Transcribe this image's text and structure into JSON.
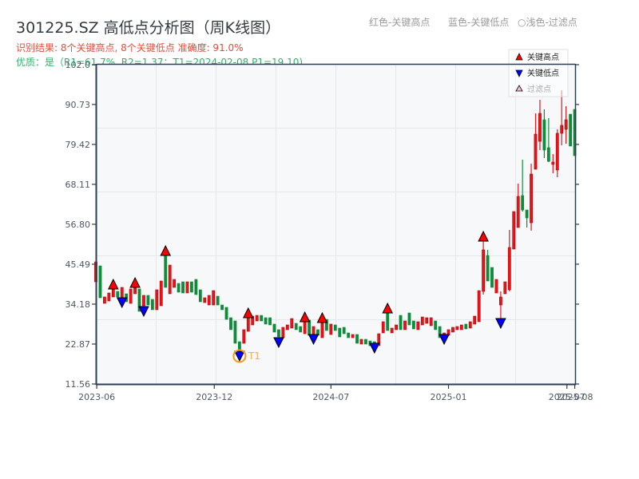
{
  "header": {
    "title": "301225.SZ 高低点分析图（周K线图）",
    "result_line": "识别结果: 8个关键高点, 8个关键低点  准确度: 91.0%",
    "quality_line": "优质：是（R1=61.7%, R2=1.37；T1=2024-02-08 P1=19.10)"
  },
  "color_legend": {
    "high": "红色-关键高点",
    "low": "蓝色-关键低点",
    "filtered": "○浅色-过滤点"
  },
  "chart_legend": {
    "high": "关键高点",
    "low": "关键低点",
    "filtered": "过滤点"
  },
  "chart_data": {
    "type": "candlestick",
    "title": "301225.SZ 高低点分析图（周K线图）",
    "subtitle": "识别结果: 8个关键高点, 8个关键低点  准确度: 91.0%",
    "xlabel": "",
    "ylabel": "",
    "ylim": [
      11.56,
      102.0
    ],
    "xlim": [
      0.18,
      110.08
    ],
    "grid": true,
    "legend_position": "upper right",
    "y_ticks": [
      {
        "value": 102.0,
        "label": "102.0"
      },
      {
        "value": 90.73,
        "label": "90.73"
      },
      {
        "value": 79.42,
        "label": "79.42"
      },
      {
        "value": 68.11,
        "label": "68.11"
      },
      {
        "value": 56.8,
        "label": "56.80"
      },
      {
        "value": 45.49,
        "label": "45.49"
      },
      {
        "value": 34.18,
        "label": "34.18"
      },
      {
        "value": 22.87,
        "label": "22.87"
      },
      {
        "value": 11.56,
        "label": "11.56"
      }
    ],
    "x_ticks": [
      {
        "index": 0.2,
        "label": "2023-06"
      },
      {
        "index": 27.2,
        "label": "2023-12"
      },
      {
        "index": 54.0,
        "label": "2024-07"
      },
      {
        "index": 81.0,
        "label": "2025-01"
      },
      {
        "index": 108.2,
        "label": "2025-07"
      },
      {
        "index": 110.0,
        "label": "2025-08"
      }
    ],
    "colors": {
      "up": "#e8141c",
      "up_edge": "#b80000",
      "down": "#0e8c3a",
      "high_marker": "#ff0000",
      "low_marker": "#0000ff",
      "annotation": "#f39c12",
      "annotation_text": "#f5b041",
      "filtered_marker": "#ffc0cb"
    },
    "ohlc_columns": [
      "open",
      "high",
      "low",
      "close"
    ],
    "candles_ohlc": [
      [
        40.5,
        46.15,
        40.5,
        46.15
      ],
      [
        45.02,
        45.02,
        35.98,
        35.98
      ],
      [
        34.4,
        36.21,
        34.4,
        36.21
      ],
      [
        35.07,
        37.34,
        35.07,
        37.34
      ],
      [
        36.21,
        38.47,
        36.21,
        38.47
      ],
      [
        37.79,
        37.79,
        36.21,
        36.21
      ],
      [
        35.98,
        38.92,
        35.98,
        38.92
      ],
      [
        37.11,
        37.11,
        34.85,
        34.85
      ],
      [
        34.4,
        38.47,
        34.4,
        38.47
      ],
      [
        37.11,
        38.92,
        37.11,
        38.92
      ],
      [
        38.47,
        38.47,
        32.14,
        32.14
      ],
      [
        33.72,
        36.66,
        33.72,
        36.66
      ],
      [
        36.66,
        36.66,
        33.94,
        33.94
      ],
      [
        35.53,
        35.53,
        32.59,
        32.59
      ],
      [
        32.59,
        38.24,
        32.59,
        38.24
      ],
      [
        33.72,
        40.73,
        33.72,
        40.73
      ],
      [
        47.96,
        47.96,
        38.92,
        38.92
      ],
      [
        37.11,
        45.25,
        37.11,
        45.25
      ],
      [
        38.92,
        41.18,
        38.92,
        41.18
      ],
      [
        40.05,
        40.05,
        37.56,
        37.56
      ],
      [
        40.5,
        40.5,
        37.34,
        37.34
      ],
      [
        37.34,
        40.5,
        37.34,
        40.5
      ],
      [
        40.5,
        40.5,
        37.56,
        37.56
      ],
      [
        41.18,
        41.18,
        36.88,
        36.88
      ],
      [
        38.24,
        38.24,
        34.85,
        34.85
      ],
      [
        34.62,
        35.98,
        34.62,
        35.98
      ],
      [
        33.94,
        36.66,
        33.94,
        36.66
      ],
      [
        33.94,
        38.01,
        33.94,
        38.01
      ],
      [
        36.43,
        36.43,
        33.94,
        33.94
      ],
      [
        33.94,
        33.94,
        32.59,
        32.59
      ],
      [
        33.27,
        33.27,
        29.87,
        29.87
      ],
      [
        30.33,
        30.33,
        26.94,
        26.94
      ],
      [
        29.42,
        29.42,
        23.09,
        23.09
      ],
      [
        23.54,
        23.54,
        20.83,
        20.83
      ],
      [
        23.09,
        26.94,
        23.09,
        26.94
      ],
      [
        26.48,
        30.33,
        26.48,
        30.33
      ],
      [
        28.29,
        30.78,
        28.29,
        30.78
      ],
      [
        29.42,
        31.0,
        29.42,
        31.0
      ],
      [
        31.0,
        31.0,
        29.42,
        29.42
      ],
      [
        30.33,
        30.33,
        28.52,
        28.52
      ],
      [
        30.33,
        30.33,
        28.29,
        28.29
      ],
      [
        28.52,
        28.52,
        26.26,
        26.26
      ],
      [
        26.94,
        26.94,
        24.9,
        24.9
      ],
      [
        24.67,
        27.61,
        24.67,
        27.61
      ],
      [
        26.94,
        28.29,
        26.94,
        28.29
      ],
      [
        27.39,
        30.1,
        27.39,
        30.1
      ],
      [
        28.74,
        28.74,
        26.94,
        26.94
      ],
      [
        27.84,
        27.84,
        26.26,
        26.26
      ],
      [
        25.8,
        29.2,
        25.8,
        29.2
      ],
      [
        29.65,
        29.65,
        25.35,
        25.35
      ],
      [
        24.67,
        27.84,
        24.67,
        27.84
      ],
      [
        26.94,
        26.94,
        25.35,
        25.35
      ],
      [
        24.67,
        29.2,
        24.67,
        29.2
      ],
      [
        29.87,
        29.87,
        26.71,
        26.71
      ],
      [
        25.58,
        28.52,
        25.58,
        28.52
      ],
      [
        28.29,
        28.29,
        26.71,
        26.71
      ],
      [
        27.39,
        27.39,
        24.9,
        24.9
      ],
      [
        27.61,
        27.61,
        25.8,
        25.8
      ],
      [
        26.03,
        26.03,
        24.67,
        24.67
      ],
      [
        24.67,
        25.58,
        24.67,
        25.58
      ],
      [
        25.58,
        25.58,
        23.09,
        23.09
      ],
      [
        22.87,
        24.22,
        22.87,
        24.22
      ],
      [
        24.22,
        24.22,
        22.87,
        22.87
      ],
      [
        23.77,
        23.77,
        22.41,
        22.41
      ],
      [
        23.54,
        23.54,
        22.19,
        22.19
      ],
      [
        22.41,
        25.8,
        22.41,
        25.8
      ],
      [
        26.03,
        29.2,
        26.03,
        29.2
      ],
      [
        31.68,
        31.68,
        26.71,
        26.71
      ],
      [
        26.03,
        27.39,
        26.03,
        27.39
      ],
      [
        26.94,
        28.29,
        26.94,
        28.29
      ],
      [
        31.0,
        31.0,
        26.94,
        26.94
      ],
      [
        26.94,
        29.42,
        26.94,
        29.42
      ],
      [
        31.68,
        31.68,
        28.29,
        28.29
      ],
      [
        29.42,
        29.42,
        27.16,
        27.16
      ],
      [
        26.94,
        29.2,
        26.94,
        29.2
      ],
      [
        28.29,
        30.55,
        28.29,
        30.55
      ],
      [
        28.74,
        30.33,
        28.74,
        30.33
      ],
      [
        28.07,
        30.33,
        28.07,
        30.33
      ],
      [
        29.42,
        29.42,
        26.94,
        26.94
      ],
      [
        27.84,
        27.84,
        24.67,
        24.67
      ],
      [
        24.67,
        26.03,
        24.67,
        26.03
      ],
      [
        25.35,
        26.94,
        25.35,
        26.94
      ],
      [
        26.26,
        27.61,
        26.26,
        27.61
      ],
      [
        26.94,
        27.84,
        26.94,
        27.84
      ],
      [
        26.94,
        28.29,
        26.94,
        28.29
      ],
      [
        28.52,
        28.52,
        27.16,
        27.16
      ],
      [
        27.39,
        29.2,
        27.39,
        29.2
      ],
      [
        28.52,
        30.78,
        28.52,
        30.78
      ],
      [
        29.2,
        38.01,
        29.2,
        38.01
      ],
      [
        37.79,
        52.03,
        36.88,
        49.55
      ],
      [
        47.96,
        49.55,
        40.73,
        40.73
      ],
      [
        44.57,
        44.57,
        38.92,
        38.92
      ],
      [
        37.34,
        41.18,
        37.34,
        41.18
      ],
      [
        33.94,
        37.79,
        29.87,
        36.21
      ],
      [
        37.11,
        40.5,
        37.11,
        40.5
      ],
      [
        38.24,
        55.2,
        37.79,
        50.22
      ],
      [
        49.77,
        60.4,
        49.77,
        60.4
      ],
      [
        55.88,
        68.31,
        55.88,
        64.69
      ],
      [
        64.92,
        75.09,
        60.4,
        60.85
      ],
      [
        60.85,
        60.85,
        55.88,
        58.59
      ],
      [
        57.23,
        73.96,
        54.97,
        71.02
      ],
      [
        72.38,
        88.21,
        72.38,
        82.33
      ],
      [
        80.29,
        92.05,
        77.81,
        88.21
      ],
      [
        86.4,
        89.34,
        75.55,
        77.81
      ],
      [
        78.49,
        86.85,
        74.42,
        74.64
      ],
      [
        73.74,
        76.68,
        71.25,
        74.42
      ],
      [
        72.16,
        83.69,
        70.12,
        82.56
      ],
      [
        82.56,
        94.77,
        79.16,
        84.82
      ],
      [
        83.69,
        90.24,
        79.62,
        86.4
      ],
      [
        87.98,
        87.98,
        78.94,
        78.94
      ],
      [
        89.34,
        89.34,
        76.22,
        76.22
      ]
    ],
    "key_highs": [
      {
        "index": 4,
        "price": 39.82
      },
      {
        "index": 9,
        "price": 40.27
      },
      {
        "index": 16,
        "price": 49.32
      },
      {
        "index": 35,
        "price": 31.68
      },
      {
        "index": 48,
        "price": 30.55
      },
      {
        "index": 52,
        "price": 30.33
      },
      {
        "index": 67,
        "price": 33.04
      },
      {
        "index": 89,
        "price": 53.39
      }
    ],
    "key_lows": [
      {
        "index": 6,
        "price": 34.62
      },
      {
        "index": 11,
        "price": 32.14
      },
      {
        "index": 33,
        "price": 19.47
      },
      {
        "index": 42,
        "price": 23.32
      },
      {
        "index": 50,
        "price": 24.22
      },
      {
        "index": 64,
        "price": 21.73
      },
      {
        "index": 80,
        "price": 24.22
      },
      {
        "index": 93,
        "price": 28.74
      }
    ],
    "annotations": [
      {
        "label": "T1",
        "index": 33,
        "price": 19.1,
        "date": "2024-02-08"
      }
    ],
    "stats": {
      "key_high_count": 8,
      "key_low_count": 8,
      "accuracy": "91.0%",
      "quality": "是",
      "R1": "61.7%",
      "R2": 1.37,
      "T1": "2024-02-08",
      "P1": 19.1
    }
  }
}
